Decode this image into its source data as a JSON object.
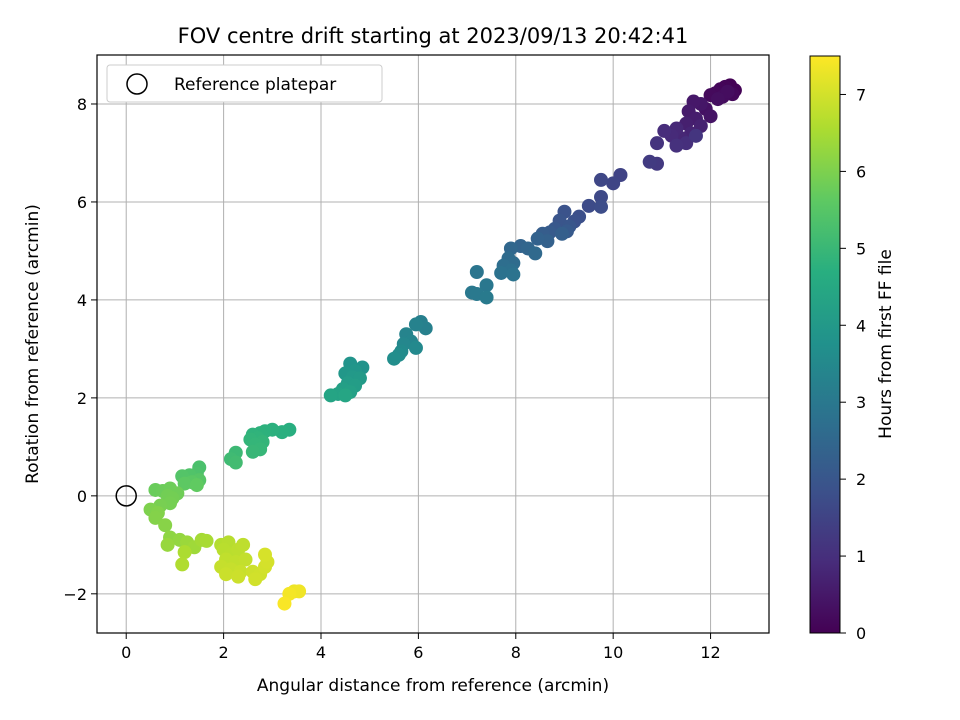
{
  "chart_data": {
    "type": "scatter",
    "title": "FOV centre drift starting at 2023/09/13 20:42:41",
    "xlabel": "Angular distance from reference (arcmin)",
    "ylabel": "Rotation from reference (arcmin)",
    "xlim": [
      -0.6,
      13.2
    ],
    "ylim": [
      -2.8,
      9.0
    ],
    "xticks": [
      0,
      2,
      4,
      6,
      8,
      10,
      12
    ],
    "yticks": [
      -2,
      0,
      2,
      4,
      6,
      8
    ],
    "grid": true,
    "legend": {
      "placement": "upper-left",
      "entries": [
        "Reference platepar"
      ]
    },
    "reference_point": {
      "x": 0,
      "y": 0,
      "label": "Reference platepar"
    },
    "colorbar": {
      "label": "Hours from first FF file",
      "range": [
        0,
        7.5
      ],
      "ticks": [
        0,
        1,
        2,
        3,
        4,
        5,
        6,
        7
      ],
      "colormap": "viridis"
    },
    "points": [
      {
        "x": 12.4,
        "y": 8.38,
        "h": 0.02
      },
      {
        "x": 12.5,
        "y": 8.28,
        "h": 0.05
      },
      {
        "x": 12.3,
        "y": 8.35,
        "h": 0.08
      },
      {
        "x": 12.2,
        "y": 8.3,
        "h": 0.11
      },
      {
        "x": 12.45,
        "y": 8.2,
        "h": 0.14
      },
      {
        "x": 12.1,
        "y": 8.22,
        "h": 0.17
      },
      {
        "x": 12.0,
        "y": 8.18,
        "h": 0.2
      },
      {
        "x": 12.25,
        "y": 8.15,
        "h": 0.23
      },
      {
        "x": 12.35,
        "y": 8.25,
        "h": 0.26
      },
      {
        "x": 12.15,
        "y": 8.1,
        "h": 0.3
      },
      {
        "x": 11.9,
        "y": 7.9,
        "h": 0.35
      },
      {
        "x": 12.0,
        "y": 7.75,
        "h": 0.4
      },
      {
        "x": 11.8,
        "y": 8.0,
        "h": 0.45
      },
      {
        "x": 11.65,
        "y": 8.05,
        "h": 0.5
      },
      {
        "x": 11.55,
        "y": 7.85,
        "h": 0.55
      },
      {
        "x": 11.7,
        "y": 7.7,
        "h": 0.6
      },
      {
        "x": 11.5,
        "y": 7.6,
        "h": 0.65
      },
      {
        "x": 11.8,
        "y": 7.55,
        "h": 0.7
      },
      {
        "x": 11.6,
        "y": 7.4,
        "h": 0.75
      },
      {
        "x": 11.4,
        "y": 7.3,
        "h": 0.8
      },
      {
        "x": 11.3,
        "y": 7.5,
        "h": 0.85
      },
      {
        "x": 11.2,
        "y": 7.35,
        "h": 0.9
      },
      {
        "x": 11.05,
        "y": 7.45,
        "h": 0.95
      },
      {
        "x": 11.5,
        "y": 7.2,
        "h": 1.0
      },
      {
        "x": 11.3,
        "y": 7.15,
        "h": 1.05
      },
      {
        "x": 10.9,
        "y": 7.2,
        "h": 1.1
      },
      {
        "x": 11.7,
        "y": 7.35,
        "h": 1.15
      },
      {
        "x": 10.9,
        "y": 6.78,
        "h": 1.25
      },
      {
        "x": 10.75,
        "y": 6.82,
        "h": 1.3
      },
      {
        "x": 10.15,
        "y": 6.55,
        "h": 1.5
      },
      {
        "x": 10.0,
        "y": 6.38,
        "h": 1.55
      },
      {
        "x": 9.75,
        "y": 6.45,
        "h": 1.6
      },
      {
        "x": 9.75,
        "y": 6.1,
        "h": 1.65
      },
      {
        "x": 9.5,
        "y": 5.92,
        "h": 1.7
      },
      {
        "x": 9.75,
        "y": 5.9,
        "h": 1.75
      },
      {
        "x": 9.3,
        "y": 5.7,
        "h": 1.8
      },
      {
        "x": 9.2,
        "y": 5.6,
        "h": 1.85
      },
      {
        "x": 9.0,
        "y": 5.8,
        "h": 1.9
      },
      {
        "x": 8.9,
        "y": 5.62,
        "h": 1.95
      },
      {
        "x": 9.1,
        "y": 5.5,
        "h": 2.0
      },
      {
        "x": 8.8,
        "y": 5.45,
        "h": 2.05
      },
      {
        "x": 9.05,
        "y": 5.4,
        "h": 2.1
      },
      {
        "x": 8.7,
        "y": 5.38,
        "h": 2.15
      },
      {
        "x": 8.55,
        "y": 5.35,
        "h": 2.2
      },
      {
        "x": 8.95,
        "y": 5.35,
        "h": 2.25
      },
      {
        "x": 8.65,
        "y": 5.2,
        "h": 2.3
      },
      {
        "x": 8.45,
        "y": 5.25,
        "h": 2.35
      },
      {
        "x": 8.1,
        "y": 5.1,
        "h": 2.4
      },
      {
        "x": 8.25,
        "y": 5.05,
        "h": 2.45
      },
      {
        "x": 7.9,
        "y": 5.05,
        "h": 2.5
      },
      {
        "x": 8.4,
        "y": 4.95,
        "h": 2.55
      },
      {
        "x": 7.85,
        "y": 4.85,
        "h": 2.6
      },
      {
        "x": 7.95,
        "y": 4.75,
        "h": 2.65
      },
      {
        "x": 7.75,
        "y": 4.7,
        "h": 2.7
      },
      {
        "x": 7.9,
        "y": 4.6,
        "h": 2.75
      },
      {
        "x": 7.7,
        "y": 4.55,
        "h": 2.8
      },
      {
        "x": 7.95,
        "y": 4.52,
        "h": 2.85
      },
      {
        "x": 7.2,
        "y": 4.57,
        "h": 2.9
      },
      {
        "x": 7.4,
        "y": 4.3,
        "h": 2.95
      },
      {
        "x": 7.1,
        "y": 4.15,
        "h": 3.0
      },
      {
        "x": 7.2,
        "y": 4.12,
        "h": 3.02
      },
      {
        "x": 7.4,
        "y": 4.05,
        "h": 3.05
      },
      {
        "x": 6.05,
        "y": 3.55,
        "h": 3.2
      },
      {
        "x": 6.15,
        "y": 3.42,
        "h": 3.25
      },
      {
        "x": 5.95,
        "y": 3.5,
        "h": 3.3
      },
      {
        "x": 5.75,
        "y": 3.3,
        "h": 3.35
      },
      {
        "x": 5.85,
        "y": 3.15,
        "h": 3.4
      },
      {
        "x": 5.7,
        "y": 3.1,
        "h": 3.45
      },
      {
        "x": 5.95,
        "y": 3.02,
        "h": 3.5
      },
      {
        "x": 5.65,
        "y": 2.95,
        "h": 3.55
      },
      {
        "x": 5.6,
        "y": 2.88,
        "h": 3.6
      },
      {
        "x": 5.5,
        "y": 2.8,
        "h": 3.65
      },
      {
        "x": 4.85,
        "y": 2.62,
        "h": 3.8
      },
      {
        "x": 4.6,
        "y": 2.7,
        "h": 3.85
      },
      {
        "x": 4.7,
        "y": 2.55,
        "h": 3.9
      },
      {
        "x": 4.5,
        "y": 2.5,
        "h": 3.95
      },
      {
        "x": 4.65,
        "y": 2.42,
        "h": 4.0
      },
      {
        "x": 4.8,
        "y": 2.4,
        "h": 4.05
      },
      {
        "x": 4.55,
        "y": 2.3,
        "h": 4.1
      },
      {
        "x": 4.7,
        "y": 2.25,
        "h": 4.15
      },
      {
        "x": 4.45,
        "y": 2.18,
        "h": 4.2
      },
      {
        "x": 4.6,
        "y": 2.12,
        "h": 4.25
      },
      {
        "x": 4.35,
        "y": 2.08,
        "h": 4.3
      },
      {
        "x": 4.2,
        "y": 2.05,
        "h": 4.35
      },
      {
        "x": 4.5,
        "y": 2.05,
        "h": 4.4
      },
      {
        "x": 3.35,
        "y": 1.35,
        "h": 4.7
      },
      {
        "x": 3.2,
        "y": 1.3,
        "h": 4.72
      },
      {
        "x": 3.0,
        "y": 1.35,
        "h": 4.75
      },
      {
        "x": 2.85,
        "y": 1.32,
        "h": 4.78
      },
      {
        "x": 2.75,
        "y": 1.28,
        "h": 4.8
      },
      {
        "x": 2.6,
        "y": 1.25,
        "h": 4.82
      },
      {
        "x": 2.7,
        "y": 1.18,
        "h": 4.85
      },
      {
        "x": 2.55,
        "y": 1.15,
        "h": 4.88
      },
      {
        "x": 2.8,
        "y": 1.1,
        "h": 4.9
      },
      {
        "x": 2.65,
        "y": 1.05,
        "h": 4.92
      },
      {
        "x": 2.75,
        "y": 0.95,
        "h": 4.95
      },
      {
        "x": 2.6,
        "y": 0.9,
        "h": 4.98
      },
      {
        "x": 2.25,
        "y": 0.88,
        "h": 5.05
      },
      {
        "x": 2.15,
        "y": 0.75,
        "h": 5.1
      },
      {
        "x": 2.25,
        "y": 0.68,
        "h": 5.15
      },
      {
        "x": 1.5,
        "y": 0.58,
        "h": 5.3
      },
      {
        "x": 1.45,
        "y": 0.45,
        "h": 5.35
      },
      {
        "x": 1.3,
        "y": 0.42,
        "h": 5.4
      },
      {
        "x": 1.15,
        "y": 0.4,
        "h": 5.45
      },
      {
        "x": 1.5,
        "y": 0.32,
        "h": 5.5
      },
      {
        "x": 1.35,
        "y": 0.28,
        "h": 5.55
      },
      {
        "x": 1.2,
        "y": 0.25,
        "h": 5.6
      },
      {
        "x": 1.45,
        "y": 0.22,
        "h": 5.65
      },
      {
        "x": 0.6,
        "y": 0.12,
        "h": 5.75
      },
      {
        "x": 0.75,
        "y": 0.1,
        "h": 5.78
      },
      {
        "x": 0.9,
        "y": 0.15,
        "h": 5.8
      },
      {
        "x": 1.05,
        "y": 0.05,
        "h": 5.83
      },
      {
        "x": 0.85,
        "y": 0.0,
        "h": 5.86
      },
      {
        "x": 0.95,
        "y": -0.05,
        "h": 5.88
      },
      {
        "x": 0.9,
        "y": -0.15,
        "h": 5.9
      },
      {
        "x": 0.7,
        "y": -0.2,
        "h": 5.93
      },
      {
        "x": 0.5,
        "y": -0.28,
        "h": 6.0
      },
      {
        "x": 0.65,
        "y": -0.35,
        "h": 6.05
      },
      {
        "x": 0.6,
        "y": -0.45,
        "h": 6.08
      },
      {
        "x": 0.8,
        "y": -0.6,
        "h": 6.12
      },
      {
        "x": 0.9,
        "y": -0.85,
        "h": 6.2
      },
      {
        "x": 1.1,
        "y": -0.9,
        "h": 6.25
      },
      {
        "x": 0.85,
        "y": -1.0,
        "h": 6.3
      },
      {
        "x": 1.25,
        "y": -0.95,
        "h": 6.35
      },
      {
        "x": 1.4,
        "y": -1.05,
        "h": 6.4
      },
      {
        "x": 1.55,
        "y": -0.9,
        "h": 6.45
      },
      {
        "x": 1.65,
        "y": -0.92,
        "h": 6.5
      },
      {
        "x": 1.2,
        "y": -1.15,
        "h": 6.55
      },
      {
        "x": 1.15,
        "y": -1.4,
        "h": 6.6
      },
      {
        "x": 1.95,
        "y": -1.0,
        "h": 6.65
      },
      {
        "x": 2.1,
        "y": -0.95,
        "h": 6.68
      },
      {
        "x": 2.0,
        "y": -1.1,
        "h": 6.7
      },
      {
        "x": 2.15,
        "y": -1.2,
        "h": 6.72
      },
      {
        "x": 2.3,
        "y": -1.1,
        "h": 6.74
      },
      {
        "x": 2.4,
        "y": -1.0,
        "h": 6.76
      },
      {
        "x": 2.05,
        "y": -1.3,
        "h": 6.78
      },
      {
        "x": 2.25,
        "y": -1.35,
        "h": 6.8
      },
      {
        "x": 2.45,
        "y": -1.3,
        "h": 6.82
      },
      {
        "x": 1.95,
        "y": -1.45,
        "h": 6.84
      },
      {
        "x": 2.15,
        "y": -1.5,
        "h": 6.86
      },
      {
        "x": 2.35,
        "y": -1.55,
        "h": 6.88
      },
      {
        "x": 2.05,
        "y": -1.6,
        "h": 6.9
      },
      {
        "x": 2.3,
        "y": -1.65,
        "h": 6.92
      },
      {
        "x": 2.6,
        "y": -1.55,
        "h": 6.94
      },
      {
        "x": 2.75,
        "y": -1.6,
        "h": 6.96
      },
      {
        "x": 2.65,
        "y": -1.7,
        "h": 6.98
      },
      {
        "x": 2.85,
        "y": -1.45,
        "h": 7.0
      },
      {
        "x": 2.9,
        "y": -1.35,
        "h": 7.02
      },
      {
        "x": 2.85,
        "y": -1.2,
        "h": 7.04
      },
      {
        "x": 3.45,
        "y": -1.95,
        "h": 7.3
      },
      {
        "x": 3.55,
        "y": -1.95,
        "h": 7.35
      },
      {
        "x": 3.35,
        "y": -2.0,
        "h": 7.4
      },
      {
        "x": 3.25,
        "y": -2.2,
        "h": 7.45
      }
    ]
  }
}
